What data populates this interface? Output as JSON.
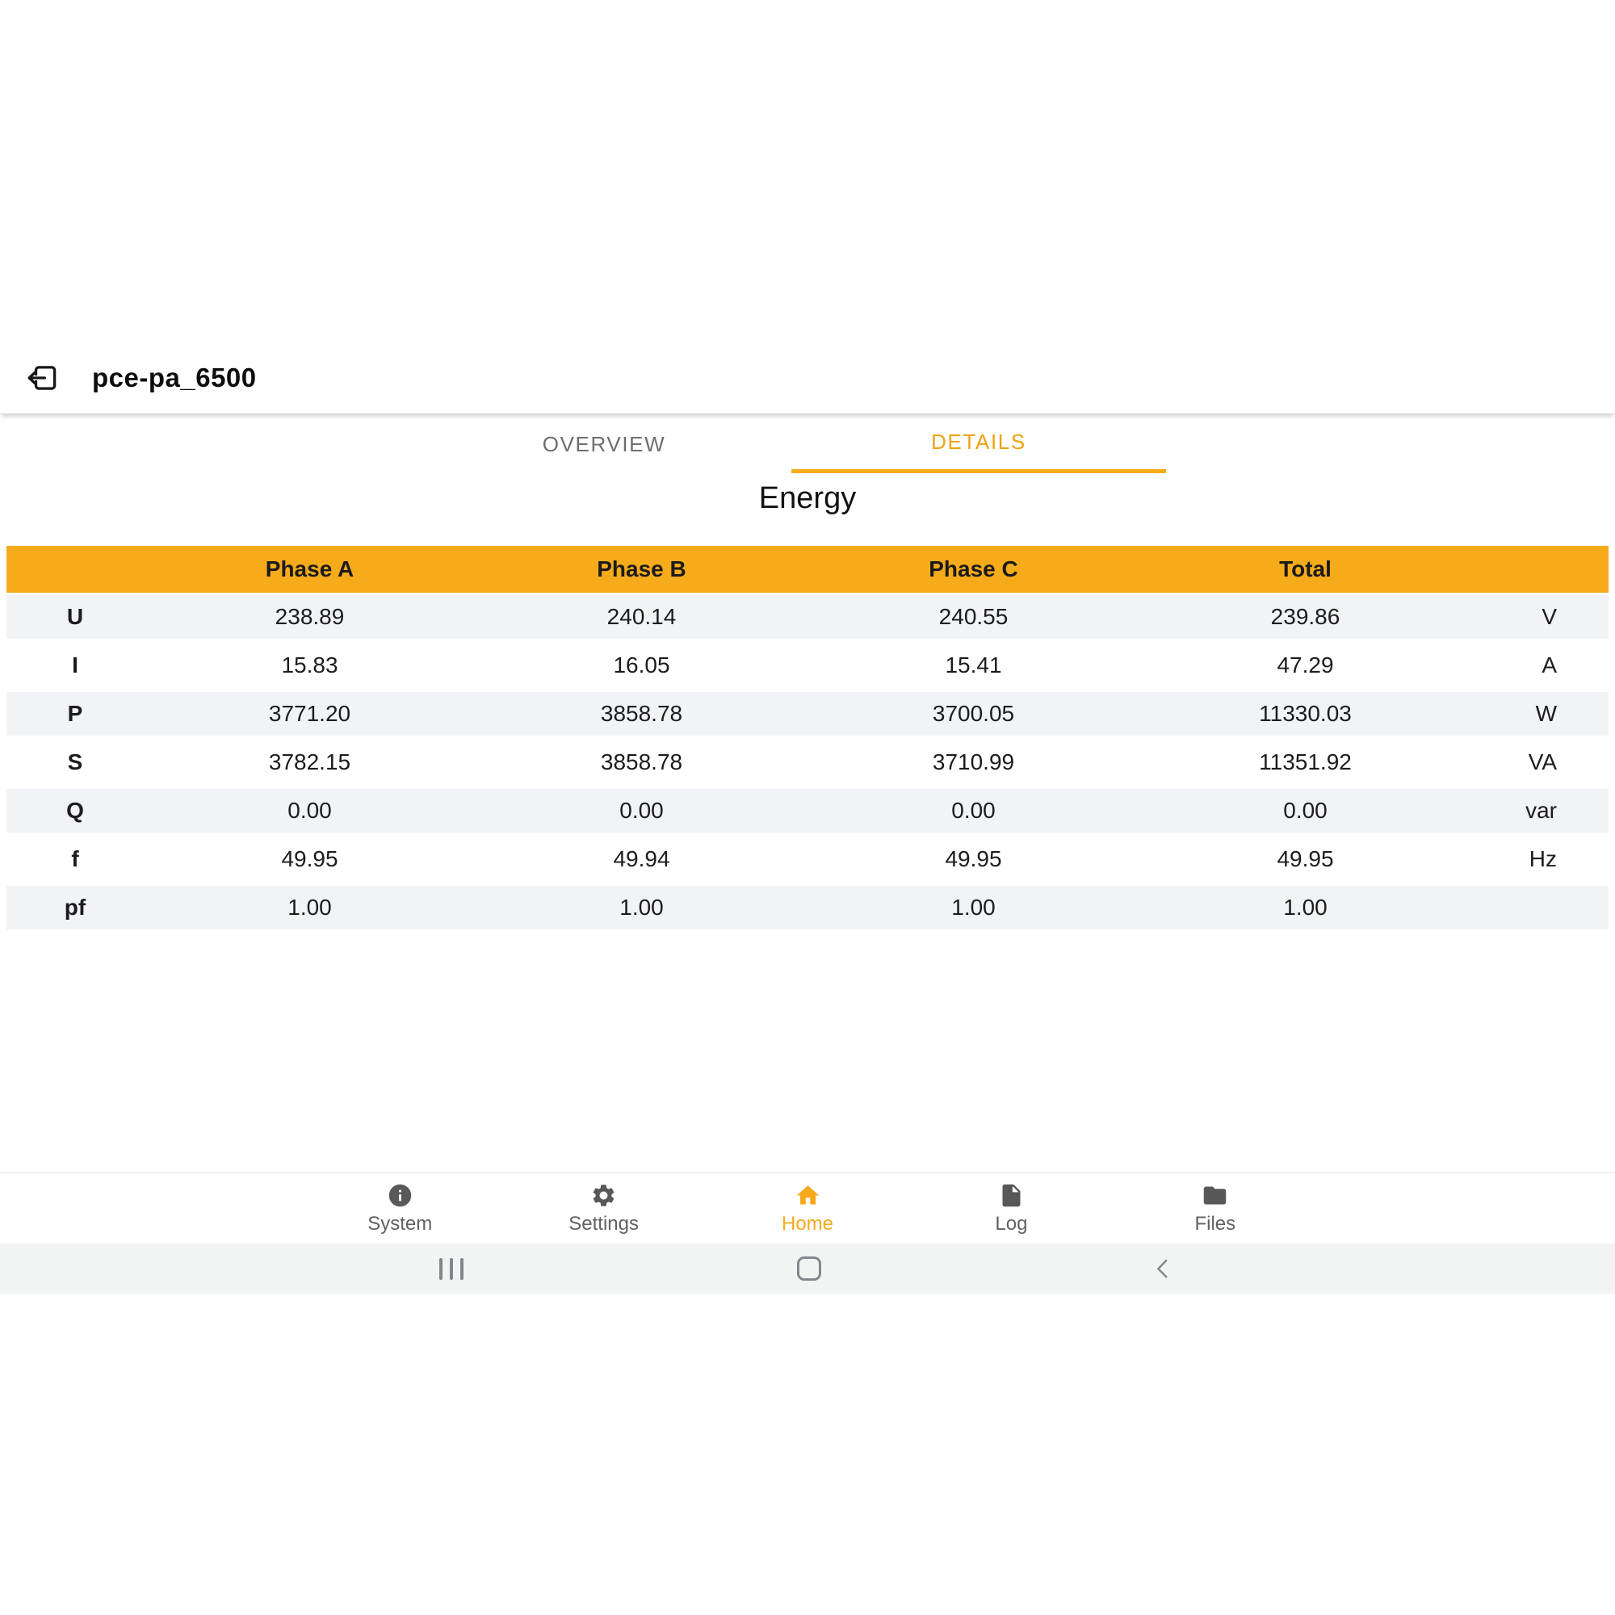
{
  "toolbar": {
    "title": "pce-pa_6500"
  },
  "tabs": {
    "overview": "OVERVIEW",
    "details": "DETAILS",
    "active_tab": "DETAILS"
  },
  "content": {
    "heading": "Energy"
  },
  "table": {
    "columns": {
      "label": "",
      "phase_a": "Phase A",
      "phase_b": "Phase B",
      "phase_c": "Phase C",
      "total": "Total",
      "unit": ""
    },
    "rows": [
      {
        "label": "U",
        "phase_a": "238.89",
        "phase_b": "240.14",
        "phase_c": "240.55",
        "total": "239.86",
        "unit": "V"
      },
      {
        "label": "I",
        "phase_a": "15.83",
        "phase_b": "16.05",
        "phase_c": "15.41",
        "total": "47.29",
        "unit": "A"
      },
      {
        "label": "P",
        "phase_a": "3771.20",
        "phase_b": "3858.78",
        "phase_c": "3700.05",
        "total": "11330.03",
        "unit": "W"
      },
      {
        "label": "S",
        "phase_a": "3782.15",
        "phase_b": "3858.78",
        "phase_c": "3710.99",
        "total": "11351.92",
        "unit": "VA"
      },
      {
        "label": "Q",
        "phase_a": "0.00",
        "phase_b": "0.00",
        "phase_c": "0.00",
        "total": "0.00",
        "unit": "var"
      },
      {
        "label": "f",
        "phase_a": "49.95",
        "phase_b": "49.94",
        "phase_c": "49.95",
        "total": "49.95",
        "unit": "Hz"
      },
      {
        "label": "pf",
        "phase_a": "1.00",
        "phase_b": "1.00",
        "phase_c": "1.00",
        "total": "1.00",
        "unit": ""
      }
    ]
  },
  "bottom_nav": {
    "items": [
      {
        "label": "System",
        "icon": "info-icon",
        "active": false
      },
      {
        "label": "Settings",
        "icon": "gear-icon",
        "active": false
      },
      {
        "label": "Home",
        "icon": "home-icon",
        "active": true
      },
      {
        "label": "Log",
        "icon": "document-icon",
        "active": false
      },
      {
        "label": "Files",
        "icon": "folder-icon",
        "active": false
      }
    ]
  },
  "android_nav": {
    "buttons": [
      "recents",
      "home",
      "back"
    ]
  },
  "colors": {
    "accent": "#F6AB1B",
    "row_stripe": "#F1F3F7",
    "inactive_tab": "#6E6E6E",
    "nav_gray": "#585858",
    "android_bar_bg": "#F2F4F4"
  }
}
